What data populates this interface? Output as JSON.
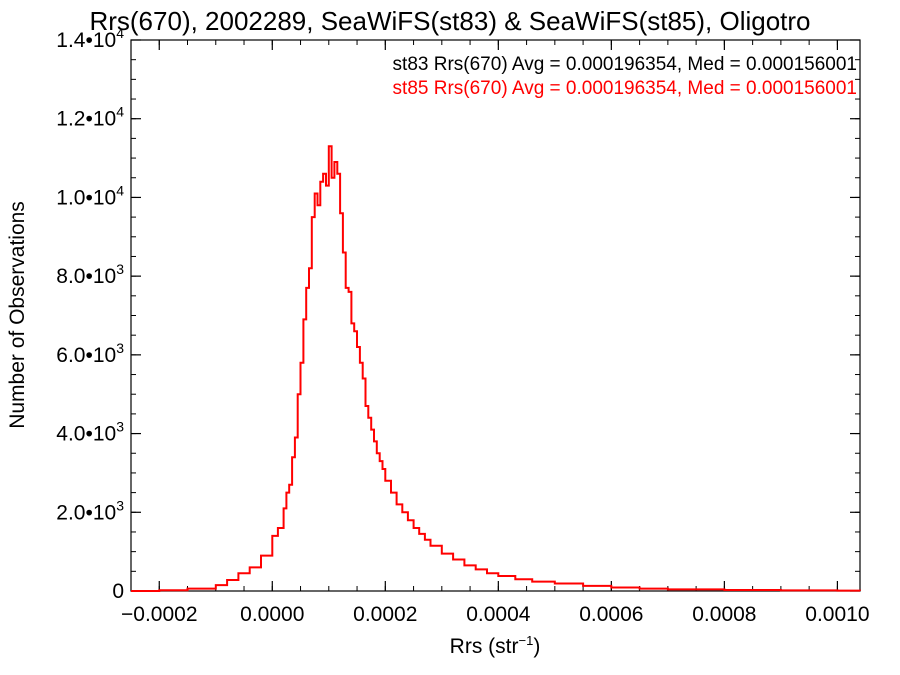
{
  "chart_data": {
    "type": "line",
    "title": "Rrs(670), 2002289, SeaWiFS(st83) & SeaWiFS(st85), Oligotro",
    "xlabel": {
      "base": "Rrs (str",
      "sup": "−1",
      "tail": ")"
    },
    "ylabel": "Number of Observations",
    "xlim": [
      -0.00025,
      0.00104
    ],
    "ylim": [
      0,
      14000
    ],
    "x_ticks": [
      {
        "value": -0.0002,
        "label": "−0.0002"
      },
      {
        "value": 0.0,
        "label": "0.0000"
      },
      {
        "value": 0.0002,
        "label": "0.0002"
      },
      {
        "value": 0.0004,
        "label": "0.0004"
      },
      {
        "value": 0.0006,
        "label": "0.0006"
      },
      {
        "value": 0.0008,
        "label": "0.0008"
      },
      {
        "value": 0.001,
        "label": "0.0010"
      }
    ],
    "y_ticks": [
      {
        "value": 0,
        "mant": "0",
        "exp": ""
      },
      {
        "value": 2000,
        "mant": "2.0•10",
        "exp": "3"
      },
      {
        "value": 4000,
        "mant": "4.0•10",
        "exp": "3"
      },
      {
        "value": 6000,
        "mant": "6.0•10",
        "exp": "3"
      },
      {
        "value": 8000,
        "mant": "8.0•10",
        "exp": "3"
      },
      {
        "value": 10000,
        "mant": "1.0•10",
        "exp": "4"
      },
      {
        "value": 12000,
        "mant": "1.2•10",
        "exp": "4"
      },
      {
        "value": 14000,
        "mant": "1.4•10",
        "exp": "4"
      }
    ],
    "x_minor_step": 5e-05,
    "y_minor_step": 500,
    "annotations": [
      {
        "text": "st83 Rrs(670) Avg = 0.000196354, Med = 0.000156001",
        "color": "#000000"
      },
      {
        "text": "st85 Rrs(670) Avg = 0.000196354, Med = 0.000156001",
        "color": "#ff0000"
      }
    ],
    "series": [
      {
        "color": "#ff0000",
        "x": [
          -0.00025,
          -0.0002,
          -0.00015,
          -0.0001,
          -8e-05,
          -6e-05,
          -4e-05,
          -2e-05,
          0.0,
          1e-05,
          2e-05,
          2.5e-05,
          3e-05,
          3.5e-05,
          4e-05,
          4.5e-05,
          5e-05,
          5.5e-05,
          6e-05,
          6.5e-05,
          7e-05,
          7.5e-05,
          8e-05,
          8.5e-05,
          9e-05,
          9.5e-05,
          0.0001,
          0.000105,
          0.00011,
          0.000115,
          0.00012,
          0.000125,
          0.00013,
          0.000135,
          0.00014,
          0.000145,
          0.00015,
          0.000155,
          0.00016,
          0.000165,
          0.00017,
          0.000175,
          0.00018,
          0.000185,
          0.00019,
          0.000195,
          0.0002,
          0.00021,
          0.00022,
          0.00023,
          0.00024,
          0.00025,
          0.00026,
          0.00027,
          0.00028,
          0.0003,
          0.00032,
          0.00034,
          0.00036,
          0.00038,
          0.0004,
          0.00043,
          0.00046,
          0.0005,
          0.00055,
          0.0006,
          0.00065,
          0.0007,
          0.0008,
          0.0009,
          0.001,
          0.00104
        ],
        "y": [
          0,
          20,
          60,
          150,
          280,
          450,
          600,
          900,
          1400,
          1600,
          2100,
          2500,
          2700,
          3400,
          3900,
          5000,
          5800,
          6900,
          7700,
          8200,
          9500,
          10100,
          9800,
          10400,
          10600,
          10300,
          11300,
          10500,
          10900,
          10600,
          9600,
          8600,
          7700,
          7600,
          6800,
          6600,
          6200,
          5800,
          5400,
          4700,
          4400,
          4100,
          3800,
          3500,
          3300,
          3100,
          2800,
          2500,
          2200,
          2000,
          1800,
          1600,
          1450,
          1300,
          1150,
          950,
          800,
          650,
          550,
          450,
          380,
          300,
          240,
          190,
          130,
          90,
          60,
          40,
          25,
          15,
          10,
          8
        ]
      }
    ]
  }
}
